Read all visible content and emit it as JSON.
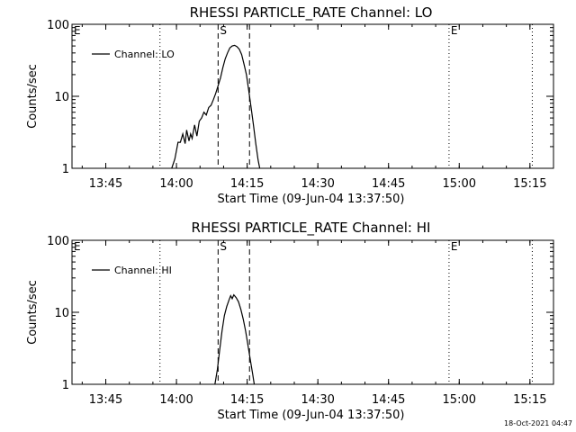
{
  "footer": {
    "timestamp": "18-Oct-2021 04:47"
  },
  "chart_data": [
    {
      "type": "line",
      "title": "RHESSI PARTICLE_RATE Channel: LO",
      "xlabel": "Start Time (09-Jun-04 13:37:50)",
      "ylabel": "Counts/sec",
      "yscale": "log",
      "ylim": [
        1,
        100
      ],
      "xlim": [
        "13:37:50",
        "15:20:00"
      ],
      "x_ticks": [
        "13:45",
        "14:00",
        "14:15",
        "14:30",
        "14:45",
        "15:00",
        "15:15"
      ],
      "y_ticks": [
        "1",
        "10",
        "100"
      ],
      "legend": {
        "entries": [
          "Channel: LO"
        ],
        "placement": "top-left"
      },
      "event_markers": [
        {
          "label": "E",
          "time": "13:37:50",
          "style": "dotted"
        },
        {
          "label": "",
          "time": "13:56:30",
          "style": "dotted"
        },
        {
          "label": "S",
          "time": "14:08:50",
          "style": "dashed"
        },
        {
          "label": "",
          "time": "14:15:30",
          "style": "dashed"
        },
        {
          "label": "E",
          "time": "14:57:50",
          "style": "dotted"
        },
        {
          "label": "",
          "time": "15:15:30",
          "style": "dotted"
        }
      ],
      "series": [
        {
          "name": "Channel: LO",
          "points": [
            [
              "13:59:00",
              1.0
            ],
            [
              "13:59:40",
              1.35
            ],
            [
              "14:00:20",
              2.3
            ],
            [
              "14:00:50",
              2.3
            ],
            [
              "14:01:20",
              3.0
            ],
            [
              "14:01:50",
              2.2
            ],
            [
              "14:02:10",
              3.4
            ],
            [
              "14:02:40",
              2.4
            ],
            [
              "14:03:00",
              3.0
            ],
            [
              "14:03:20",
              2.6
            ],
            [
              "14:03:50",
              4.0
            ],
            [
              "14:04:20",
              2.8
            ],
            [
              "14:04:50",
              4.5
            ],
            [
              "14:05:20",
              5.0
            ],
            [
              "14:05:50",
              6.0
            ],
            [
              "14:06:20",
              5.5
            ],
            [
              "14:06:50",
              7.0
            ],
            [
              "14:07:20",
              7.5
            ],
            [
              "14:07:50",
              9.0
            ],
            [
              "14:08:20",
              11.0
            ],
            [
              "14:08:50",
              14.0
            ],
            [
              "14:09:20",
              18.0
            ],
            [
              "14:09:50",
              25.0
            ],
            [
              "14:10:20",
              33.0
            ],
            [
              "14:10:50",
              40.0
            ],
            [
              "14:11:20",
              47.0
            ],
            [
              "14:11:50",
              50.0
            ],
            [
              "14:12:20",
              51.0
            ],
            [
              "14:12:50",
              49.0
            ],
            [
              "14:13:20",
              45.0
            ],
            [
              "14:13:50",
              38.0
            ],
            [
              "14:14:20",
              28.0
            ],
            [
              "14:14:50",
              20.0
            ],
            [
              "14:15:20",
              12.0
            ],
            [
              "14:15:50",
              7.0
            ],
            [
              "14:16:20",
              4.0
            ],
            [
              "14:16:50",
              2.2
            ],
            [
              "14:17:20",
              1.3
            ],
            [
              "14:17:40",
              1.0
            ]
          ]
        }
      ]
    },
    {
      "type": "line",
      "title": "RHESSI PARTICLE_RATE Channel: HI",
      "xlabel": "Start Time (09-Jun-04 13:37:50)",
      "ylabel": "Counts/sec",
      "yscale": "log",
      "ylim": [
        1,
        100
      ],
      "xlim": [
        "13:37:50",
        "15:20:00"
      ],
      "x_ticks": [
        "13:45",
        "14:00",
        "14:15",
        "14:30",
        "14:45",
        "15:00",
        "15:15"
      ],
      "y_ticks": [
        "1",
        "10",
        "100"
      ],
      "legend": {
        "entries": [
          "Channel: HI"
        ],
        "placement": "top-left"
      },
      "event_markers": [
        {
          "label": "E",
          "time": "13:37:50",
          "style": "dotted"
        },
        {
          "label": "",
          "time": "13:56:30",
          "style": "dotted"
        },
        {
          "label": "S",
          "time": "14:08:50",
          "style": "dashed"
        },
        {
          "label": "",
          "time": "14:15:30",
          "style": "dashed"
        },
        {
          "label": "E",
          "time": "14:57:50",
          "style": "dotted"
        },
        {
          "label": "",
          "time": "15:15:30",
          "style": "dotted"
        }
      ],
      "series": [
        {
          "name": "Channel: HI",
          "points": [
            [
              "14:08:10",
              1.0
            ],
            [
              "14:08:40",
              1.6
            ],
            [
              "14:09:10",
              3.0
            ],
            [
              "14:09:40",
              5.5
            ],
            [
              "14:10:10",
              9.0
            ],
            [
              "14:10:40",
              12.0
            ],
            [
              "14:11:10",
              15.0
            ],
            [
              "14:11:30",
              17.0
            ],
            [
              "14:11:50",
              15.5
            ],
            [
              "14:12:10",
              17.5
            ],
            [
              "14:12:40",
              16.0
            ],
            [
              "14:13:10",
              14.0
            ],
            [
              "14:13:40",
              11.0
            ],
            [
              "14:14:10",
              8.0
            ],
            [
              "14:14:40",
              5.5
            ],
            [
              "14:15:10",
              3.5
            ],
            [
              "14:15:40",
              2.2
            ],
            [
              "14:16:10",
              1.4
            ],
            [
              "14:16:30",
              1.0
            ]
          ]
        }
      ]
    }
  ]
}
